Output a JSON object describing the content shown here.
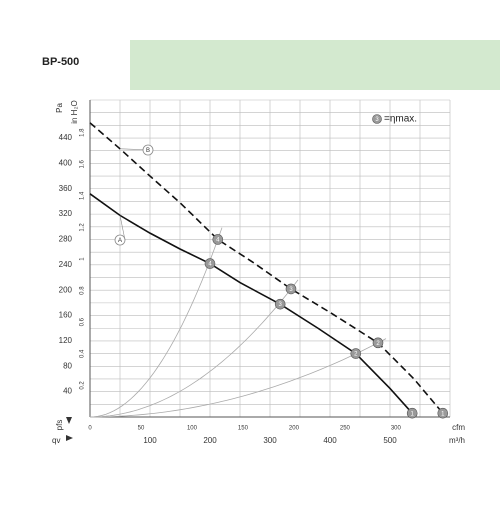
{
  "chart_data": {
    "type": "line",
    "title": "BP-500",
    "ylabel": "Pa",
    "y2label": "in H₂O",
    "xlabel": "qv",
    "x2label": "cfm",
    "xunit": "m³/h",
    "pressure_label": "pfs",
    "xlim": [
      0,
      600
    ],
    "ylim": [
      0,
      500
    ],
    "y2lim": [
      0,
      2.007
    ],
    "x2lim": [
      0,
      353.1
    ],
    "xticks": [
      100,
      200,
      300,
      400,
      500
    ],
    "x2ticks": [
      0,
      50,
      100,
      150,
      200,
      250,
      300
    ],
    "yticks": [
      40,
      80,
      120,
      160,
      200,
      240,
      280,
      320,
      360,
      400,
      440
    ],
    "y2ticks": [
      0.2,
      0.4,
      0.6,
      0.8,
      1.0,
      1.2,
      1.4,
      1.6,
      1.8
    ],
    "xgrid": [
      0,
      50,
      100,
      150,
      200,
      250,
      300,
      350,
      400,
      450,
      500,
      550,
      600
    ],
    "ygrid": [
      0,
      20,
      40,
      60,
      80,
      100,
      120,
      140,
      160,
      180,
      200,
      220,
      240,
      260,
      280,
      300,
      320,
      340,
      360,
      380,
      400,
      420,
      440,
      460,
      480,
      500
    ],
    "grid": true,
    "legend_symbol": "3",
    "legend_text": "=ηmax.",
    "series": [
      {
        "name": "A",
        "color": "#111111",
        "dashed": false,
        "x": [
          0,
          50,
          100,
          150,
          200,
          250,
          317,
          380,
          443,
          500,
          537
        ],
        "values": [
          352,
          318,
          290,
          265,
          242,
          212,
          178,
          140,
          100,
          45,
          6
        ],
        "point_labels": [
          null,
          null,
          null,
          null,
          "4",
          null,
          "3",
          null,
          "2",
          null,
          "1"
        ]
      },
      {
        "name": "B",
        "color": "#111111",
        "dashed": true,
        "x": [
          0,
          50,
          100,
          150,
          213,
          270,
          335,
          400,
          480,
          540,
          588
        ],
        "values": [
          464,
          423,
          380,
          338,
          280,
          245,
          202,
          165,
          117,
          60,
          6
        ],
        "point_labels": [
          null,
          null,
          null,
          null,
          "4",
          null,
          "3",
          null,
          "2",
          null,
          "1"
        ]
      }
    ]
  }
}
